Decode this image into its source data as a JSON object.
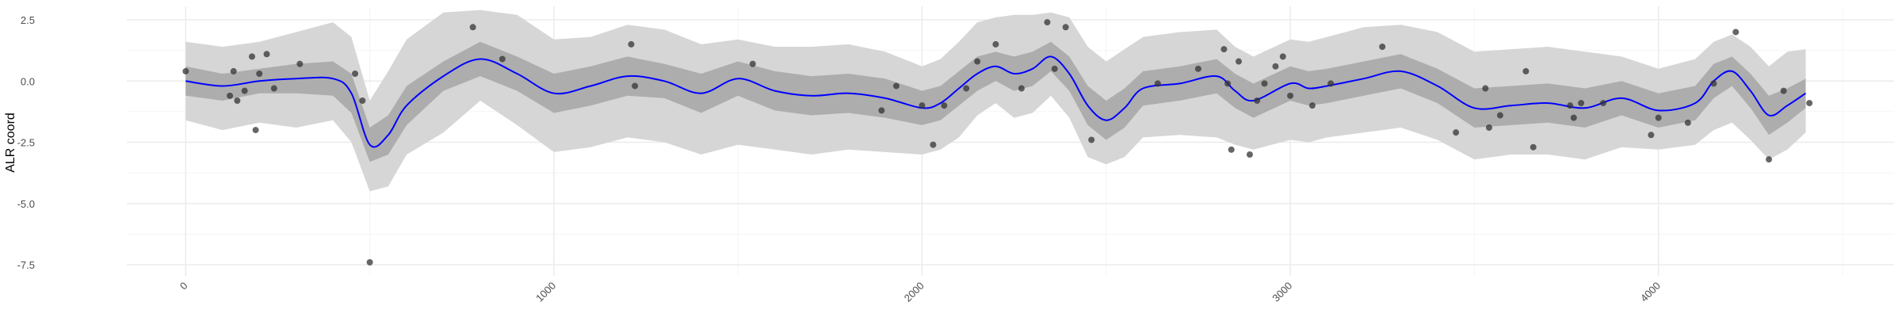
{
  "chart_data": {
    "type": "line",
    "title": "",
    "xlabel": "",
    "ylabel": "ALR coord",
    "xlim": [
      -160,
      4640
    ],
    "ylim": [
      -7.95,
      3.05
    ],
    "grid": true,
    "x_ticks": [
      0,
      1000,
      2000,
      3000,
      4000
    ],
    "x_tick_labels": [
      "0",
      "1000",
      "2000",
      "3000",
      "4000"
    ],
    "y_ticks": [
      -7.5,
      -5.0,
      -2.5,
      0.0,
      2.5
    ],
    "y_tick_labels": [
      "-7.5",
      "-5.0",
      "-2.5",
      "0.0",
      "2.5"
    ],
    "colors": {
      "mean_line": "#0000ff",
      "inner_band": "#adadad",
      "outer_band": "#d6d6d6",
      "points": "#333333",
      "grid_major": "#ebebeb",
      "grid_minor": "#f4f4f4"
    },
    "series": [
      {
        "name": "mean",
        "x": [
          0,
          100,
          200,
          300,
          400,
          450,
          500,
          550,
          600,
          700,
          800,
          900,
          1000,
          1100,
          1200,
          1300,
          1400,
          1500,
          1600,
          1700,
          1800,
          1900,
          2000,
          2050,
          2100,
          2150,
          2200,
          2250,
          2300,
          2350,
          2400,
          2450,
          2500,
          2550,
          2600,
          2700,
          2800,
          2850,
          2900,
          3000,
          3050,
          3100,
          3200,
          3300,
          3400,
          3500,
          3600,
          3700,
          3800,
          3900,
          4000,
          4100,
          4150,
          4200,
          4250,
          4300,
          4350,
          4400
        ],
        "y": [
          0.0,
          -0.2,
          0.0,
          0.1,
          0.1,
          -0.5,
          -2.6,
          -2.2,
          -1.0,
          0.2,
          0.9,
          0.3,
          -0.5,
          -0.2,
          0.2,
          0.0,
          -0.5,
          0.1,
          -0.4,
          -0.6,
          -0.5,
          -0.7,
          -1.1,
          -0.9,
          -0.3,
          0.3,
          0.6,
          0.3,
          0.5,
          1.0,
          0.3,
          -1.0,
          -1.6,
          -1.1,
          -0.3,
          -0.1,
          0.2,
          -0.4,
          -0.8,
          -0.1,
          -0.3,
          -0.2,
          0.1,
          0.4,
          -0.2,
          -1.1,
          -1.0,
          -0.9,
          -1.1,
          -0.7,
          -1.2,
          -0.9,
          0.0,
          0.4,
          -0.4,
          -1.4,
          -1.0,
          -0.5
        ]
      },
      {
        "name": "inner_band",
        "x": [
          0,
          100,
          200,
          300,
          400,
          450,
          500,
          550,
          600,
          700,
          800,
          900,
          1000,
          1100,
          1200,
          1300,
          1400,
          1500,
          1600,
          1700,
          1800,
          1900,
          2000,
          2050,
          2100,
          2150,
          2200,
          2250,
          2300,
          2350,
          2400,
          2450,
          2500,
          2550,
          2600,
          2700,
          2800,
          2850,
          2900,
          3000,
          3050,
          3100,
          3200,
          3300,
          3400,
          3500,
          3600,
          3700,
          3800,
          3900,
          4000,
          4100,
          4150,
          4200,
          4250,
          4300,
          4350,
          4400
        ],
        "upper": [
          0.6,
          0.3,
          0.5,
          0.7,
          0.8,
          0.3,
          -1.9,
          -1.4,
          -0.2,
          0.8,
          1.6,
          1.0,
          0.3,
          0.6,
          1.0,
          0.7,
          0.3,
          0.8,
          0.4,
          0.2,
          0.3,
          0.1,
          -0.4,
          -0.2,
          0.4,
          1.0,
          1.2,
          1.0,
          1.2,
          1.6,
          1.0,
          -0.2,
          -0.8,
          -0.3,
          0.4,
          0.6,
          0.9,
          0.3,
          -0.1,
          0.6,
          0.4,
          0.5,
          0.8,
          1.1,
          0.5,
          -0.3,
          -0.2,
          -0.1,
          -0.3,
          0.0,
          -0.5,
          -0.2,
          0.7,
          1.0,
          0.3,
          -0.6,
          -0.3,
          0.1
        ],
        "lower": [
          -0.6,
          -0.8,
          -0.5,
          -0.5,
          -0.6,
          -1.3,
          -3.3,
          -3.0,
          -1.8,
          -0.4,
          0.2,
          -0.4,
          -1.3,
          -1.0,
          -0.6,
          -0.7,
          -1.3,
          -0.6,
          -1.2,
          -1.4,
          -1.3,
          -1.5,
          -1.8,
          -1.6,
          -1.0,
          -0.4,
          0.0,
          -0.4,
          -0.2,
          0.4,
          -0.4,
          -1.8,
          -2.4,
          -1.9,
          -1.0,
          -0.8,
          -0.5,
          -1.1,
          -1.5,
          -0.8,
          -1.0,
          -0.9,
          -0.6,
          -0.3,
          -0.9,
          -1.9,
          -1.8,
          -1.7,
          -1.9,
          -1.4,
          -1.9,
          -1.6,
          -0.7,
          -0.2,
          -1.1,
          -2.2,
          -1.7,
          -1.1
        ]
      },
      {
        "name": "outer_band",
        "x": [
          0,
          100,
          200,
          300,
          400,
          450,
          500,
          550,
          600,
          700,
          800,
          900,
          1000,
          1100,
          1200,
          1300,
          1400,
          1500,
          1600,
          1700,
          1800,
          1900,
          2000,
          2050,
          2100,
          2150,
          2200,
          2250,
          2300,
          2350,
          2400,
          2450,
          2500,
          2550,
          2600,
          2700,
          2800,
          2850,
          2900,
          3000,
          3050,
          3100,
          3200,
          3300,
          3400,
          3500,
          3600,
          3700,
          3800,
          3900,
          4000,
          4100,
          4150,
          4200,
          4250,
          4300,
          4350,
          4400
        ],
        "upper": [
          1.6,
          1.4,
          1.6,
          2.0,
          2.4,
          1.8,
          -0.8,
          0.4,
          1.7,
          2.8,
          2.9,
          2.7,
          1.7,
          1.8,
          2.3,
          2.1,
          1.5,
          1.7,
          1.4,
          1.4,
          1.5,
          1.2,
          0.6,
          0.9,
          1.6,
          2.4,
          2.6,
          2.7,
          2.7,
          2.8,
          2.6,
          1.4,
          0.8,
          1.3,
          1.8,
          2.0,
          2.1,
          1.4,
          1.0,
          1.7,
          1.6,
          1.8,
          2.2,
          2.3,
          2.0,
          1.2,
          1.3,
          1.4,
          1.2,
          1.0,
          0.5,
          0.9,
          1.6,
          1.9,
          1.4,
          0.6,
          1.2,
          1.3
        ],
        "lower": [
          -1.6,
          -2.0,
          -1.7,
          -1.9,
          -1.6,
          -2.5,
          -4.5,
          -4.3,
          -3.0,
          -2.1,
          -0.8,
          -1.8,
          -2.9,
          -2.7,
          -2.3,
          -2.5,
          -3.0,
          -2.6,
          -2.8,
          -3.0,
          -2.8,
          -2.9,
          -3.0,
          -2.8,
          -2.3,
          -1.4,
          -0.9,
          -1.5,
          -1.3,
          -0.6,
          -1.5,
          -3.1,
          -3.4,
          -3.1,
          -2.3,
          -2.2,
          -2.3,
          -2.6,
          -2.8,
          -2.4,
          -2.5,
          -2.3,
          -2.1,
          -1.9,
          -2.4,
          -3.2,
          -3.0,
          -3.0,
          -3.2,
          -2.7,
          -2.8,
          -2.6,
          -2.0,
          -1.7,
          -2.4,
          -3.2,
          -2.8,
          -2.1
        ]
      },
      {
        "name": "observations",
        "x": [
          0,
          120,
          130,
          140,
          160,
          180,
          190,
          200,
          220,
          240,
          310,
          460,
          480,
          500,
          780,
          860,
          1210,
          1220,
          1540,
          1890,
          1930,
          2000,
          2030,
          2060,
          2120,
          2150,
          2200,
          2270,
          2340,
          2360,
          2390,
          2460,
          2640,
          2750,
          2820,
          2830,
          2840,
          2860,
          2890,
          2910,
          2930,
          2960,
          2980,
          3000,
          3060,
          3110,
          3250,
          3450,
          3530,
          3540,
          3570,
          3640,
          3660,
          3760,
          3770,
          3790,
          3850,
          3980,
          4000,
          4080,
          4150,
          4210,
          4300,
          4340,
          4410
        ],
        "y": [
          0.4,
          -0.6,
          0.4,
          -0.8,
          -0.4,
          1.0,
          -2.0,
          0.3,
          1.1,
          -0.3,
          0.7,
          0.3,
          -0.8,
          -7.4,
          2.2,
          0.9,
          1.5,
          -0.2,
          0.7,
          -1.2,
          -0.2,
          -1.0,
          -2.6,
          -1.0,
          -0.3,
          0.8,
          1.5,
          -0.3,
          2.4,
          0.5,
          2.2,
          -2.4,
          -0.1,
          0.5,
          1.3,
          -0.1,
          -2.8,
          0.8,
          -3.0,
          -0.8,
          -0.1,
          0.6,
          1.0,
          -0.6,
          -1.0,
          -0.1,
          1.4,
          -2.1,
          -0.3,
          -1.9,
          -1.4,
          0.4,
          -2.7,
          -1.0,
          -1.5,
          -0.9,
          -0.9,
          -2.2,
          -1.5,
          -1.7,
          -0.1,
          2.0,
          -3.2,
          -0.4,
          -0.9
        ]
      }
    ]
  }
}
